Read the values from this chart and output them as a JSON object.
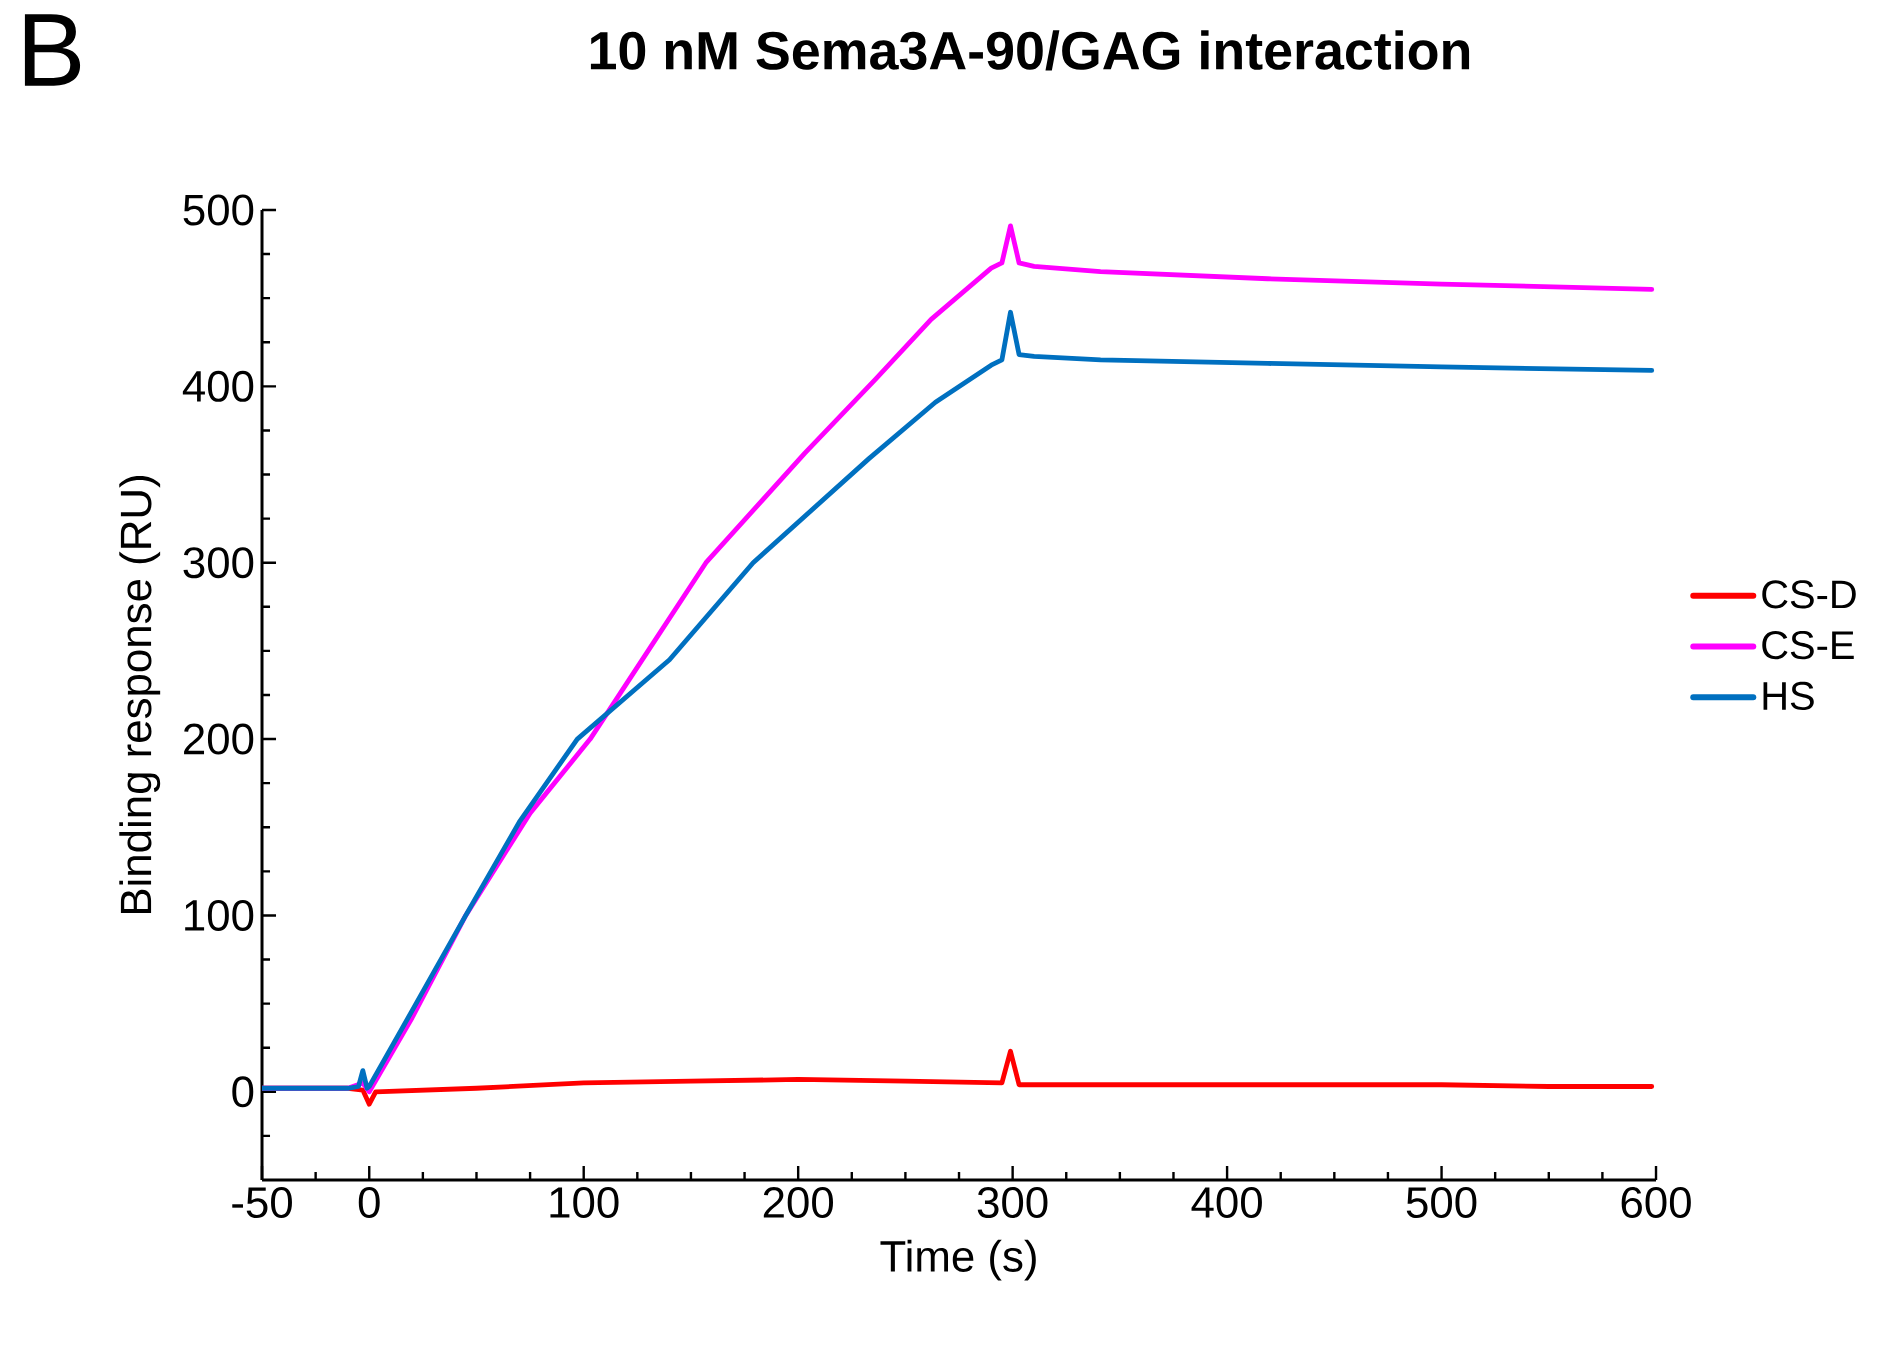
{
  "chart_data": {
    "type": "line",
    "title": "10 nM Sema3A-90/GAG interaction",
    "xlabel": "Time (s)",
    "ylabel": "Binding response (RU)",
    "annotations": [
      "B"
    ],
    "xlim": [
      -50,
      600
    ],
    "ylim": [
      -50,
      500
    ],
    "xticks": [
      -50,
      {
        "value": -25,
        "label": null
      },
      0,
      {
        "value": 25,
        "label": null
      },
      {
        "value": 50,
        "label": null
      },
      {
        "value": 75,
        "label": null
      },
      100,
      {
        "value": 125,
        "label": null
      },
      {
        "value": 150,
        "label": null
      },
      {
        "value": 175,
        "label": null
      },
      200,
      {
        "value": 225,
        "label": null
      },
      {
        "value": 250,
        "label": null
      },
      {
        "value": 275,
        "label": null
      },
      300,
      {
        "value": 325,
        "label": null
      },
      {
        "value": 350,
        "label": null
      },
      {
        "value": 375,
        "label": null
      },
      400,
      {
        "value": 425,
        "label": null
      },
      {
        "value": 450,
        "label": null
      },
      {
        "value": 475,
        "label": null
      },
      500,
      {
        "value": 525,
        "label": null
      },
      {
        "value": 550,
        "label": null
      },
      {
        "value": 575,
        "label": null
      },
      600
    ],
    "yticks": [
      {
        "value": -25,
        "label": null
      },
      0,
      {
        "value": 25,
        "label": null
      },
      {
        "value": 50,
        "label": null
      },
      {
        "value": 75,
        "label": null
      },
      100,
      {
        "value": 125,
        "label": null
      },
      {
        "value": 150,
        "label": null
      },
      {
        "value": 175,
        "label": null
      },
      200,
      {
        "value": 225,
        "label": null
      },
      {
        "value": 250,
        "label": null
      },
      {
        "value": 275,
        "label": null
      },
      300,
      {
        "value": 325,
        "label": null
      },
      {
        "value": 350,
        "label": null
      },
      {
        "value": 375,
        "label": null
      },
      400,
      {
        "value": 425,
        "label": null
      },
      {
        "value": 450,
        "label": null
      },
      {
        "value": 475,
        "label": null
      },
      500
    ],
    "legend": "right",
    "grid": false,
    "marker": "none",
    "line_style": "solid",
    "series": [
      {
        "name": "CS-D",
        "color": "#ff0000",
        "x": [
          -50,
          -10,
          -3,
          0,
          3,
          50,
          100,
          150,
          200,
          250,
          295,
          299,
          303,
          350,
          400,
          450,
          500,
          550,
          598
        ],
        "values": [
          2,
          2,
          1,
          -7,
          0,
          2,
          5,
          6,
          7,
          6,
          5,
          23,
          4,
          4,
          4,
          4,
          4,
          3,
          3
        ]
      },
      {
        "name": "CS-E",
        "color": "#ff00ff",
        "x": [
          -50,
          -10,
          -3,
          0,
          20,
          45,
          75,
          103,
          130,
          157,
          203,
          236,
          262,
          290,
          295,
          299,
          303,
          310,
          341,
          419,
          500,
          598
        ],
        "values": [
          2,
          2,
          5,
          0,
          42,
          100,
          158,
          200,
          250,
          300,
          362,
          404,
          438,
          467,
          470,
          491,
          470,
          468,
          465,
          461,
          458,
          455
        ]
      },
      {
        "name": "HS",
        "color": "#0070c0",
        "x": [
          -50,
          -10,
          -5,
          -3,
          -1,
          0,
          20,
          45,
          70,
          97,
          140,
          179,
          233,
          264,
          290,
          295,
          299,
          303,
          310,
          341,
          419,
          500,
          598
        ],
        "values": [
          2,
          2,
          3,
          12,
          2,
          3,
          46,
          100,
          153,
          200,
          245,
          300,
          359,
          391,
          412,
          415,
          442,
          418,
          417,
          415,
          413,
          411,
          409
        ]
      }
    ]
  }
}
